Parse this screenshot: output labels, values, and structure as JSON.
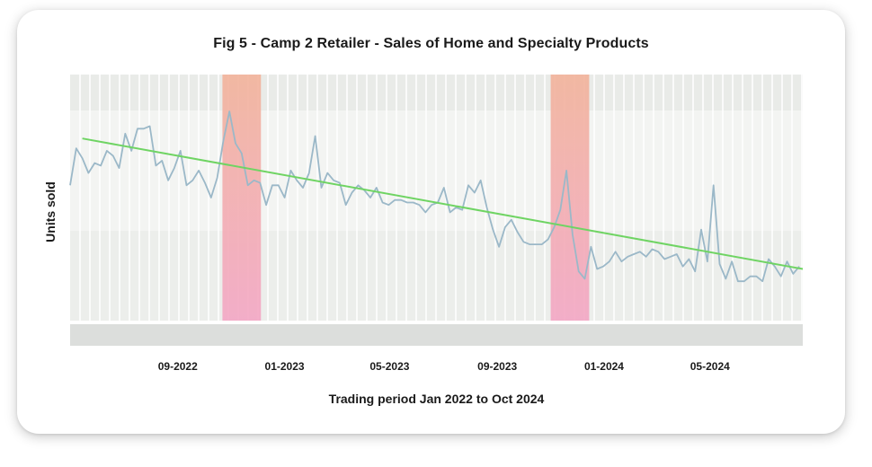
{
  "chart_data": {
    "type": "line",
    "title": "Fig 5 - Camp 2 Retailer - Sales of Home and Specialty Products",
    "xlabel": "Trading period Jan 2022 to Oct 2024",
    "ylabel": "Units sold",
    "x_start": "2022-05-01",
    "x_end": "2024-08-15",
    "ylim": [
      0,
      100
    ],
    "x_ticks": [
      {
        "date": "2022-09-01",
        "label": "09-2022"
      },
      {
        "date": "2023-01-01",
        "label": "01-2023"
      },
      {
        "date": "2023-05-01",
        "label": "05-2023"
      },
      {
        "date": "2023-09-01",
        "label": "09-2023"
      },
      {
        "date": "2024-01-01",
        "label": "01-2024"
      },
      {
        "date": "2024-05-01",
        "label": "05-2024"
      }
    ],
    "series": [
      {
        "color": "#9bb8c8",
        "x": [
          "2022-05-01",
          "2022-05-08",
          "2022-05-15",
          "2022-05-22",
          "2022-05-29",
          "2022-06-05",
          "2022-06-12",
          "2022-06-19",
          "2022-06-26",
          "2022-07-03",
          "2022-07-10",
          "2022-07-17",
          "2022-07-24",
          "2022-07-31",
          "2022-08-07",
          "2022-08-14",
          "2022-08-21",
          "2022-08-28",
          "2022-09-04",
          "2022-09-11",
          "2022-09-18",
          "2022-09-25",
          "2022-10-02",
          "2022-10-09",
          "2022-10-16",
          "2022-10-23",
          "2022-10-30",
          "2022-11-06",
          "2022-11-13",
          "2022-11-20",
          "2022-11-27",
          "2022-12-04",
          "2022-12-11",
          "2022-12-18",
          "2022-12-25",
          "2023-01-01",
          "2023-01-08",
          "2023-01-15",
          "2023-01-22",
          "2023-01-29",
          "2023-02-05",
          "2023-02-12",
          "2023-02-19",
          "2023-02-26",
          "2023-03-05",
          "2023-03-12",
          "2023-03-19",
          "2023-03-26",
          "2023-04-02",
          "2023-04-09",
          "2023-04-16",
          "2023-04-23",
          "2023-04-30",
          "2023-05-07",
          "2023-05-14",
          "2023-05-21",
          "2023-05-28",
          "2023-06-04",
          "2023-06-11",
          "2023-06-18",
          "2023-06-25",
          "2023-07-02",
          "2023-07-09",
          "2023-07-16",
          "2023-07-23",
          "2023-07-30",
          "2023-08-06",
          "2023-08-13",
          "2023-08-20",
          "2023-08-27",
          "2023-09-03",
          "2023-09-10",
          "2023-09-17",
          "2023-09-24",
          "2023-10-01",
          "2023-10-08",
          "2023-10-15",
          "2023-10-22",
          "2023-10-29",
          "2023-11-05",
          "2023-11-12",
          "2023-11-19",
          "2023-11-26",
          "2023-12-03",
          "2023-12-10",
          "2023-12-17",
          "2023-12-24",
          "2023-12-31",
          "2024-01-07",
          "2024-01-14",
          "2024-01-21",
          "2024-01-28",
          "2024-02-04",
          "2024-02-11",
          "2024-02-18",
          "2024-02-25",
          "2024-03-03",
          "2024-03-10",
          "2024-03-17",
          "2024-03-24",
          "2024-03-31",
          "2024-04-07",
          "2024-04-14",
          "2024-04-21",
          "2024-04-28",
          "2024-05-05",
          "2024-05-12",
          "2024-05-19",
          "2024-05-26",
          "2024-06-02",
          "2024-06-09",
          "2024-06-16",
          "2024-06-23",
          "2024-06-30",
          "2024-07-07",
          "2024-07-14",
          "2024-07-21",
          "2024-07-28",
          "2024-08-04",
          "2024-08-11"
        ],
        "values": [
          55,
          70,
          66,
          60,
          64,
          63,
          69,
          67,
          62,
          76,
          69,
          78,
          78,
          79,
          63,
          65,
          57,
          62,
          69,
          55,
          57,
          61,
          56,
          50,
          58,
          73,
          85,
          72,
          68,
          55,
          57,
          56,
          47,
          55,
          55,
          50,
          61,
          57,
          54,
          60,
          75,
          54,
          60,
          57,
          56,
          47,
          52,
          55,
          53,
          50,
          54,
          48,
          47,
          49,
          49,
          48,
          48,
          47,
          44,
          47,
          48,
          54,
          44,
          46,
          45,
          55,
          52,
          57,
          46,
          37,
          30,
          38,
          41,
          36,
          32,
          31,
          31,
          31,
          33,
          38,
          45,
          61,
          35,
          20,
          17,
          30,
          21,
          22,
          24,
          28,
          24,
          26,
          27,
          28,
          26,
          29,
          28,
          25,
          26,
          27,
          22,
          25,
          20,
          37,
          24,
          55,
          23,
          17,
          24,
          16,
          16,
          18,
          18,
          16,
          25,
          22,
          18,
          24,
          19,
          22
        ]
      },
      {
        "type": "trend",
        "color": "#6fd463",
        "x": [
          "2022-05-15",
          "2024-08-15"
        ],
        "values": [
          74,
          21
        ]
      }
    ],
    "highlight_bands": [
      {
        "start": "2022-10-22",
        "end": "2022-12-05"
      },
      {
        "start": "2023-11-01",
        "end": "2023-12-15"
      }
    ],
    "grid": true,
    "legend": "none"
  }
}
